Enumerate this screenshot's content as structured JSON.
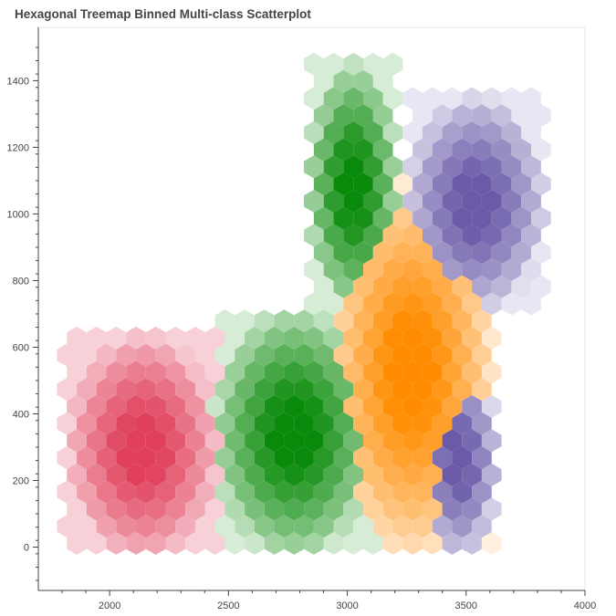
{
  "chart_data": {
    "type": "heatmap",
    "subtype": "hexbin",
    "title": "Hexagonal Treemap Binned Multi-class Scatterplot",
    "xlabel": "",
    "ylabel": "",
    "xlim": [
      1700,
      4000
    ],
    "ylim": [
      -130,
      1560
    ],
    "x_ticks": [
      2000,
      2500,
      3000,
      3500,
      4000
    ],
    "y_ticks": [
      0,
      200,
      400,
      600,
      800,
      1000,
      1200,
      1400
    ],
    "grid": false,
    "legend": "none",
    "hex_size": 50,
    "classes": [
      {
        "key": "pink",
        "color": "#e0405a",
        "light": "#f8d0d8"
      },
      {
        "key": "green",
        "color": "#0a8a0a",
        "light": "#d6ecd6"
      },
      {
        "key": "orange",
        "color": "#ff8c00",
        "light": "#fff0e0"
      },
      {
        "key": "purple",
        "color": "#6a5aa8",
        "light": "#e8e6f2"
      }
    ],
    "regions": [
      {
        "cls": "pink",
        "x": [
          1820,
          2460
        ],
        "y": [
          -40,
          640
        ]
      },
      {
        "cls": "green",
        "x": [
          2430,
          3120
        ],
        "y": [
          -40,
          720
        ]
      },
      {
        "cls": "green",
        "x": [
          2830,
          3220
        ],
        "y": [
          700,
          1460
        ]
      },
      {
        "cls": "orange",
        "x": [
          2920,
          3620
        ],
        "y": [
          -40,
          1100
        ]
      },
      {
        "cls": "purple",
        "x": [
          3300,
          3640
        ],
        "y": [
          -40,
          560
        ]
      },
      {
        "cls": "purple",
        "x": [
          3240,
          3840
        ],
        "y": [
          700,
          1360
        ]
      }
    ]
  }
}
